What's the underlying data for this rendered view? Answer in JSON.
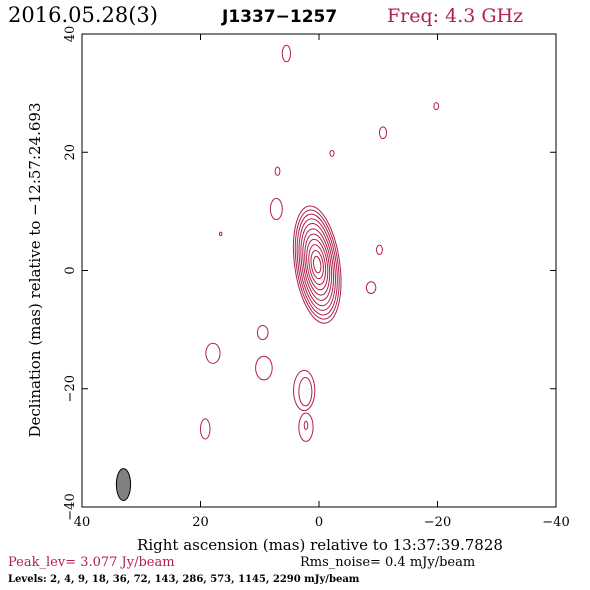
{
  "header": {
    "date": "2016.05.28(3)",
    "source": "J1337−1257",
    "freq": "Freq: 4.3 GHz"
  },
  "footer": {
    "peak": "Peak_lev=  3.077 Jy/beam",
    "rms": "Rms_noise=  0.4 mJy/beam",
    "levels": "Levels:   2,   4,   9,  18,  36,  72, 143, 286, 573, 1145, 2290 mJy/beam"
  },
  "colors": {
    "contour": "#b0204a",
    "beam": "#808080",
    "axis": "#000000"
  },
  "chart_data": {
    "type": "contour",
    "title": "",
    "xlabel": "Right ascension (mas) relative to 13:37:39.7828",
    "ylabel": "Declination (mas) relative to −12:57:24.693",
    "xlim": [
      40,
      -40
    ],
    "ylim": [
      -40,
      40
    ],
    "xticks": [
      40,
      20,
      0,
      -20,
      -40
    ],
    "yticks": [
      -40,
      -20,
      0,
      20,
      40
    ],
    "xtick_labels": [
      "40",
      "20",
      "0",
      "−20",
      "−40"
    ],
    "ytick_labels": [
      "−40",
      "−20",
      "0",
      "20",
      "40"
    ],
    "levels_mJy": [
      2,
      4,
      9,
      18,
      36,
      72,
      143,
      286,
      573,
      1145,
      2290
    ],
    "peak_Jy_per_beam": 3.077,
    "rms_mJy_per_beam": 0.4,
    "core": {
      "x": 0.3,
      "y": 1.0,
      "rings": [
        {
          "rx": 3.8,
          "ry": 10.0
        },
        {
          "rx": 3.5,
          "ry": 9.3
        },
        {
          "rx": 3.2,
          "ry": 8.6
        },
        {
          "rx": 2.9,
          "ry": 7.8
        },
        {
          "rx": 2.6,
          "ry": 7.0
        },
        {
          "rx": 2.3,
          "ry": 6.1
        },
        {
          "rx": 2.0,
          "ry": 5.2
        },
        {
          "rx": 1.7,
          "ry": 4.3
        },
        {
          "rx": 1.35,
          "ry": 3.4
        },
        {
          "rx": 1.0,
          "ry": 2.4
        },
        {
          "rx": 0.6,
          "ry": 1.4
        }
      ],
      "tilt_deg": -8
    },
    "blobs": [
      {
        "x": 5.5,
        "y": 36.7,
        "rx": 0.7,
        "ry": 1.4
      },
      {
        "x": -19.8,
        "y": 27.8,
        "rx": 0.4,
        "ry": 0.6
      },
      {
        "x": -10.8,
        "y": 23.3,
        "rx": 0.6,
        "ry": 1.0
      },
      {
        "x": -2.2,
        "y": 19.8,
        "rx": 0.35,
        "ry": 0.5
      },
      {
        "x": 7.0,
        "y": 16.8,
        "rx": 0.4,
        "ry": 0.7
      },
      {
        "x": 7.2,
        "y": 10.4,
        "rx": 1.0,
        "ry": 1.8
      },
      {
        "x": 16.6,
        "y": 6.2,
        "rx": 0.2,
        "ry": 0.3
      },
      {
        "x": -10.2,
        "y": 3.5,
        "rx": 0.5,
        "ry": 0.8
      },
      {
        "x": -8.8,
        "y": -2.9,
        "rx": 0.8,
        "ry": 1.0
      },
      {
        "x": 9.5,
        "y": -10.5,
        "rx": 0.9,
        "ry": 1.2
      },
      {
        "x": 17.9,
        "y": -14.0,
        "rx": 1.2,
        "ry": 1.7
      },
      {
        "x": 9.3,
        "y": -16.5,
        "rx": 1.4,
        "ry": 2.0
      },
      {
        "x": 19.2,
        "y": -26.8,
        "rx": 0.8,
        "ry": 1.7
      },
      {
        "x": 2.5,
        "y": -20.3,
        "rx": 1.8,
        "ry": 3.4
      },
      {
        "x": 2.3,
        "y": -20.5,
        "rx": 1.1,
        "ry": 2.4
      },
      {
        "x": 2.2,
        "y": -26.5,
        "rx": 1.2,
        "ry": 2.4
      },
      {
        "x": 2.2,
        "y": -26.2,
        "rx": 0.3,
        "ry": 0.7
      }
    ],
    "beam": {
      "x": 33.0,
      "y": -36.2,
      "rx": 1.2,
      "ry": 2.7
    }
  }
}
